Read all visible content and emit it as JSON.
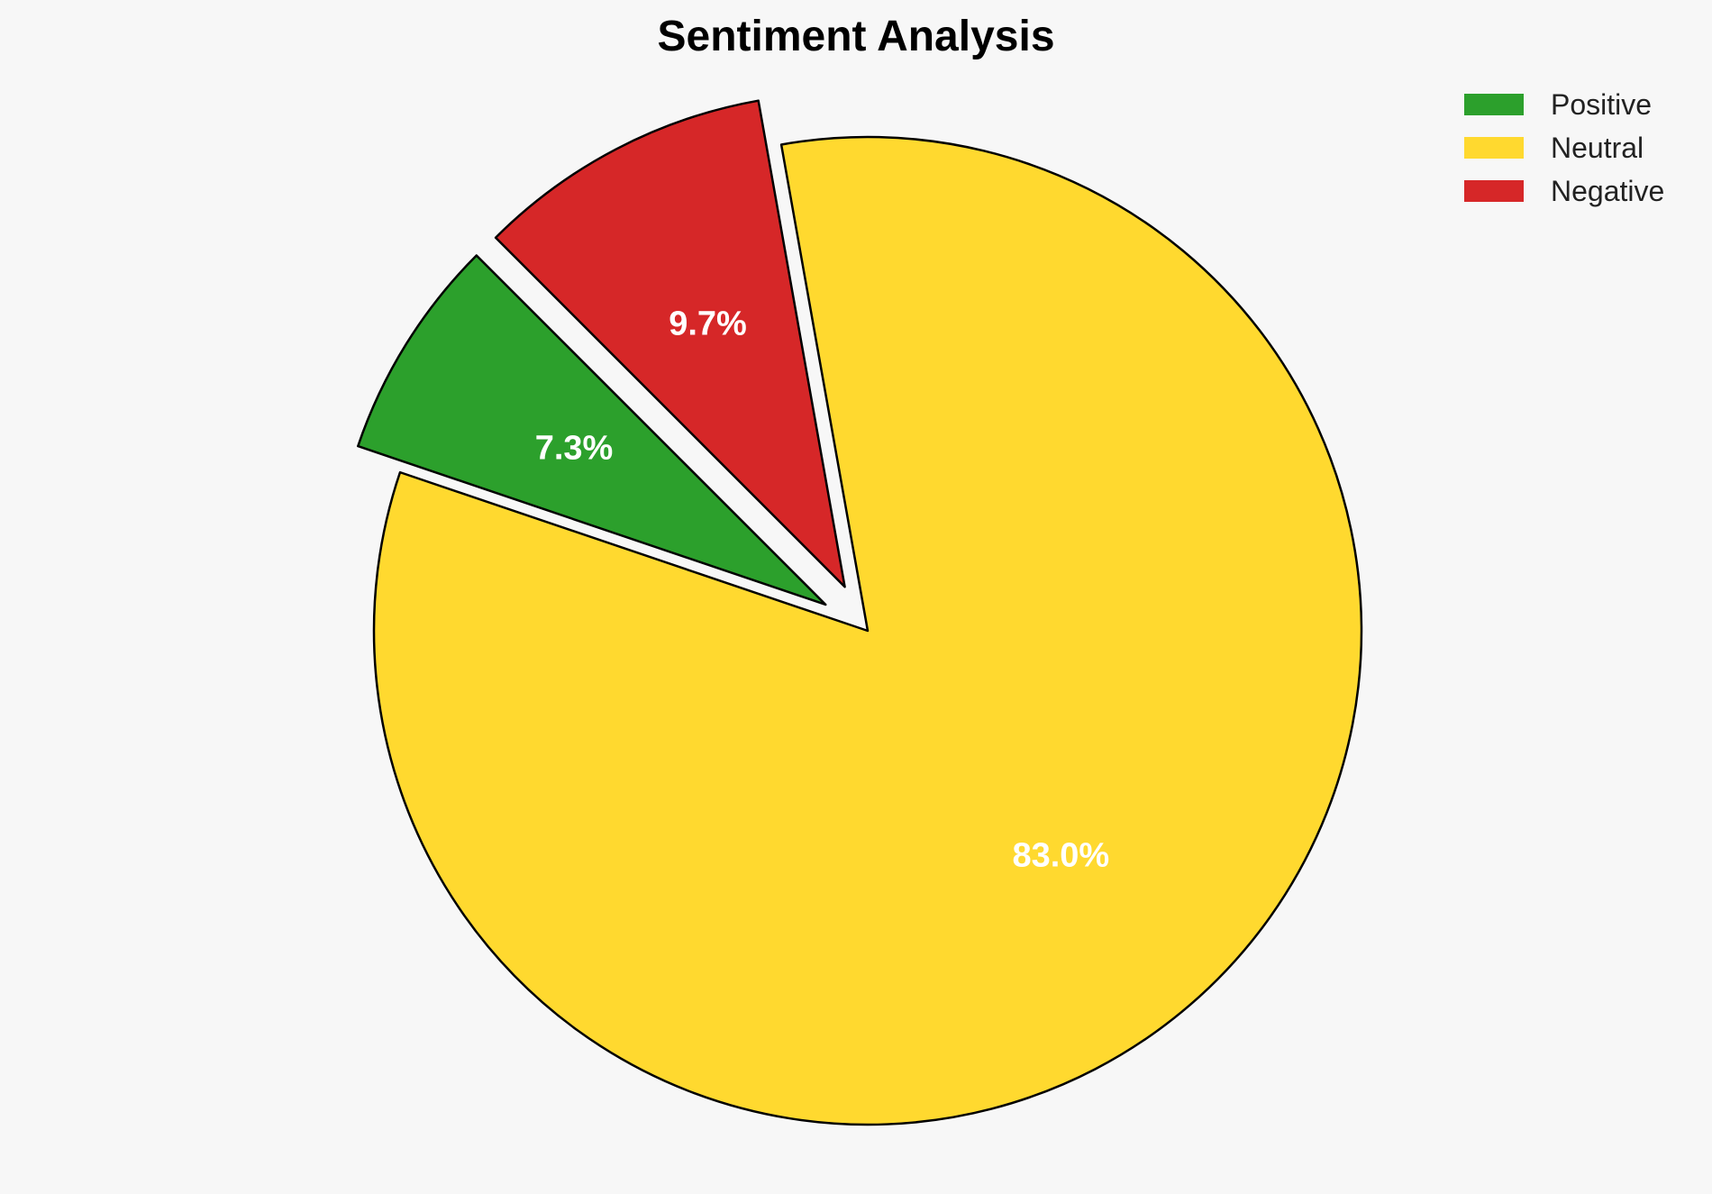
{
  "chart_data": {
    "type": "pie",
    "title": "Sentiment Analysis",
    "legend_position": "top-right",
    "slices": [
      {
        "label": "Positive",
        "value": 7.3,
        "pct_label": "7.3%",
        "color": "#2ca02c",
        "exploded": true
      },
      {
        "label": "Neutral",
        "value": 83.0,
        "pct_label": "83.0%",
        "color": "#ffd92f",
        "exploded": false
      },
      {
        "label": "Negative",
        "value": 9.7,
        "pct_label": "9.7%",
        "color": "#d62728",
        "exploded": true
      }
    ]
  }
}
